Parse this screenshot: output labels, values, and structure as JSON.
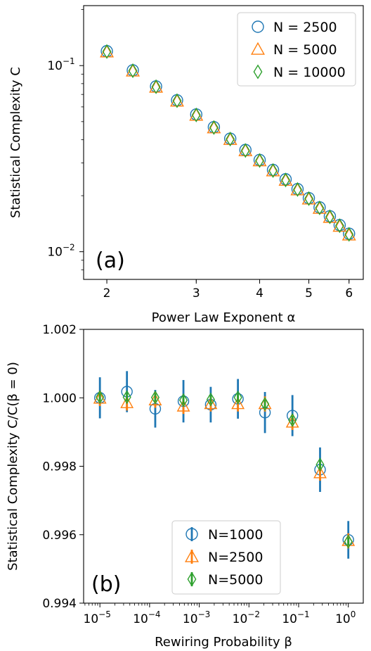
{
  "colors": {
    "blue": "#1f77b4",
    "orange": "#ff7f0e",
    "green": "#2ca02c"
  },
  "chart_data": [
    {
      "type": "scatter",
      "panel_label": "(a)",
      "xlabel": "Power Law Exponent α",
      "ylabel": "Statistical Complexity C",
      "xscale": "log",
      "yscale": "log",
      "xlim": [
        1.8,
        6.4
      ],
      "ylim": [
        0.0071,
        0.21
      ],
      "xticks": [
        {
          "v": 2,
          "label": "2"
        },
        {
          "v": 3,
          "label": "3"
        },
        {
          "v": 4,
          "label": "4"
        },
        {
          "v": 5,
          "label": "5"
        },
        {
          "v": 6,
          "label": "6"
        }
      ],
      "yticks": [
        {
          "v": 0.1,
          "base": "10",
          "exp": "−1"
        },
        {
          "v": 0.01,
          "base": "10",
          "exp": "−2"
        }
      ],
      "legend_position": "top-right",
      "x": [
        2.0,
        2.25,
        2.5,
        2.75,
        3.0,
        3.25,
        3.5,
        3.75,
        4.0,
        4.25,
        4.5,
        4.75,
        5.0,
        5.25,
        5.5,
        5.75,
        6.0
      ],
      "series": [
        {
          "name": "N = 2500",
          "legend_label": "N = 2500",
          "marker": "circle",
          "color": "#1f77b4",
          "values": [
            0.1195,
            0.0943,
            0.0773,
            0.0651,
            0.0546,
            0.0467,
            0.0405,
            0.0352,
            0.0311,
            0.0275,
            0.0245,
            0.0217,
            0.0194,
            0.0173,
            0.0155,
            0.0139,
            0.0125
          ]
        },
        {
          "name": "N = 5000",
          "legend_label": "N = 5000",
          "marker": "triangle",
          "color": "#ff7f0e",
          "values": [
            0.1185,
            0.0935,
            0.0766,
            0.0645,
            0.0541,
            0.0463,
            0.0401,
            0.0349,
            0.0308,
            0.0272,
            0.0242,
            0.0215,
            0.0192,
            0.0171,
            0.0153,
            0.0137,
            0.0123
          ]
        },
        {
          "name": "N = 10000",
          "legend_label": "N = 10000",
          "marker": "diamond",
          "color": "#2ca02c",
          "values": [
            0.119,
            0.0939,
            0.077,
            0.0648,
            0.0543,
            0.0465,
            0.0403,
            0.035,
            0.0309,
            0.0273,
            0.0243,
            0.0216,
            0.0193,
            0.0172,
            0.0154,
            0.0138,
            0.0124
          ]
        }
      ]
    },
    {
      "type": "scatter",
      "panel_label": "(b)",
      "xlabel": "Rewiring Probability β",
      "ylabel": "Statistical Complexity C/C(β = 0)",
      "xscale": "log",
      "yscale": "linear",
      "xlim": [
        4.7e-06,
        2.0
      ],
      "ylim": [
        0.994,
        1.002
      ],
      "xticks": [
        {
          "v": 1e-05,
          "base": "10",
          "exp": "−5"
        },
        {
          "v": 0.0001,
          "base": "10",
          "exp": "−4"
        },
        {
          "v": 0.001,
          "base": "10",
          "exp": "−3"
        },
        {
          "v": 0.01,
          "base": "10",
          "exp": "−2"
        },
        {
          "v": 0.1,
          "base": "10",
          "exp": "−1"
        },
        {
          "v": 1,
          "base": "10",
          "exp": "0"
        }
      ],
      "yticks": [
        {
          "v": 0.994,
          "label": "0.994"
        },
        {
          "v": 0.996,
          "label": "0.996"
        },
        {
          "v": 0.998,
          "label": "0.998"
        },
        {
          "v": 1.0,
          "label": "1.000"
        },
        {
          "v": 1.002,
          "label": "1.002"
        }
      ],
      "legend_position": "bottom-center",
      "x": [
        1e-05,
        3.5e-05,
        0.00013,
        0.00048,
        0.0017,
        0.006,
        0.021,
        0.075,
        0.27,
        1.0
      ],
      "series": [
        {
          "name": "N=1000",
          "legend_label": "N=1000",
          "marker": "circle",
          "color": "#1f77b4",
          "values": [
            1.0,
            1.00018,
            0.99968,
            0.9999,
            0.9998,
            0.99997,
            0.99957,
            0.99948,
            0.9979,
            0.99585
          ],
          "err": [
            0.0006,
            0.0006,
            0.00055,
            0.00062,
            0.00052,
            0.00058,
            0.0006,
            0.0006,
            0.00065,
            0.00055
          ]
        },
        {
          "name": "N=2500",
          "legend_label": "N=2500",
          "marker": "triangle",
          "color": "#ff7f0e",
          "values": [
            0.99998,
            0.99985,
            0.99993,
            0.99975,
            0.99982,
            0.99982,
            0.99982,
            0.99928,
            0.9978,
            0.99582
          ],
          "err": [
            0.00022,
            0.00022,
            0.00022,
            0.00022,
            0.00022,
            0.00022,
            0.00022,
            0.00022,
            0.00022,
            0.00022
          ]
        },
        {
          "name": "N=5000",
          "legend_label": "N=5000",
          "marker": "diamond",
          "color": "#2ca02c",
          "values": [
            1.00002,
            1.00002,
            1.00001,
            0.99993,
            0.99995,
            1.00001,
            0.99982,
            0.99935,
            0.99805,
            0.9958
          ],
          "err": [
            0.00012,
            0.00012,
            0.00012,
            0.00012,
            0.00012,
            0.00012,
            0.00012,
            0.00012,
            0.00012,
            0.00012
          ]
        }
      ]
    }
  ]
}
